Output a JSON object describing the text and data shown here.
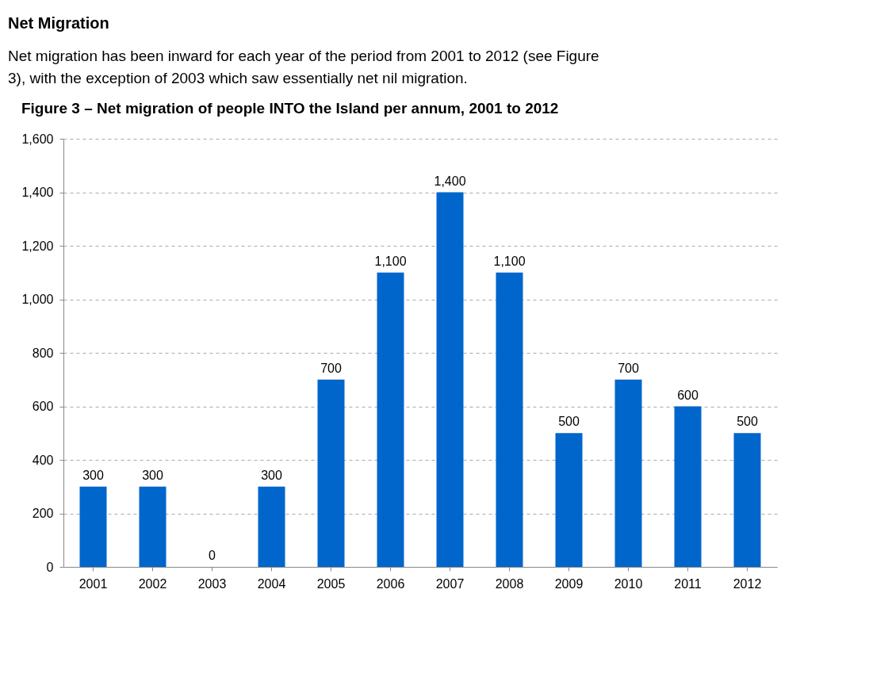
{
  "chart_data": {
    "type": "bar",
    "title": "Figure 3 – Net migration of people INTO the Island per annum, 2001 to 2012",
    "annotations": [
      "Net Migration",
      "Net migration has been inward for each year of the period from 2001 to 2012 (see Figure 3), with the exception of 2003 which saw essentially net nil migration."
    ],
    "categories": [
      "2001",
      "2002",
      "2003",
      "2004",
      "2005",
      "2006",
      "2007",
      "2008",
      "2009",
      "2010",
      "2011",
      "2012"
    ],
    "values": [
      300,
      300,
      0,
      300,
      700,
      1100,
      1400,
      1100,
      500,
      700,
      600,
      500
    ],
    "value_labels": [
      "300",
      "300",
      "0",
      "300",
      "700",
      "1,100",
      "1,400",
      "1,100",
      "500",
      "700",
      "600",
      "500"
    ],
    "color": "#0066cc",
    "ylim": [
      0,
      1600
    ],
    "yticks": [
      0,
      {
        "value": 200,
        "label": "200"
      },
      {
        "value": 400,
        "label": "400"
      },
      {
        "value": 600,
        "label": "600"
      },
      {
        "value": 800,
        "label": "800"
      },
      {
        "value": 1000,
        "label": "1,000"
      },
      {
        "value": 1200,
        "label": "1,200"
      },
      {
        "value": 1400,
        "label": "1,400"
      },
      {
        "value": 1600,
        "label": "1,600"
      }
    ],
    "grid": "y"
  }
}
